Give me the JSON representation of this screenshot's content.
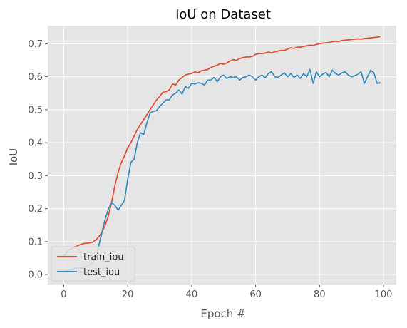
{
  "chart_data": {
    "type": "line",
    "title": "IoU on Dataset",
    "xlabel": "Epoch #",
    "ylabel": "IoU",
    "xlim": [
      -5,
      104
    ],
    "ylim": [
      -0.03,
      0.755
    ],
    "xticks": [
      0,
      20,
      40,
      60,
      80,
      100
    ],
    "yticks": [
      0.0,
      0.1,
      0.2,
      0.3,
      0.4,
      0.5,
      0.6,
      0.7
    ],
    "grid": true,
    "legend": "lower-left",
    "background": "#e5e5e5",
    "grid_color": "#ffffff",
    "x": [
      0,
      1,
      2,
      3,
      4,
      5,
      6,
      7,
      8,
      9,
      10,
      11,
      12,
      13,
      14,
      15,
      16,
      17,
      18,
      19,
      20,
      21,
      22,
      23,
      24,
      25,
      26,
      27,
      28,
      29,
      30,
      31,
      32,
      33,
      34,
      35,
      36,
      37,
      38,
      39,
      40,
      41,
      42,
      43,
      44,
      45,
      46,
      47,
      48,
      49,
      50,
      51,
      52,
      53,
      54,
      55,
      56,
      57,
      58,
      59,
      60,
      61,
      62,
      63,
      64,
      65,
      66,
      67,
      68,
      69,
      70,
      71,
      72,
      73,
      74,
      75,
      76,
      77,
      78,
      79,
      80,
      81,
      82,
      83,
      84,
      85,
      86,
      87,
      88,
      89,
      90,
      91,
      92,
      93,
      94,
      95,
      96,
      97,
      98,
      99
    ],
    "series": [
      {
        "name": "train_iou",
        "color": "#e24a33",
        "values": [
          0.055,
          0.07,
          0.077,
          0.082,
          0.086,
          0.09,
          0.094,
          0.095,
          0.096,
          0.098,
          0.105,
          0.115,
          0.13,
          0.15,
          0.18,
          0.22,
          0.27,
          0.31,
          0.34,
          0.36,
          0.385,
          0.4,
          0.42,
          0.44,
          0.455,
          0.47,
          0.485,
          0.5,
          0.515,
          0.53,
          0.54,
          0.553,
          0.555,
          0.56,
          0.578,
          0.575,
          0.59,
          0.598,
          0.605,
          0.608,
          0.61,
          0.615,
          0.612,
          0.618,
          0.62,
          0.622,
          0.628,
          0.632,
          0.635,
          0.64,
          0.638,
          0.642,
          0.648,
          0.652,
          0.65,
          0.655,
          0.658,
          0.66,
          0.66,
          0.662,
          0.668,
          0.67,
          0.67,
          0.672,
          0.675,
          0.672,
          0.676,
          0.678,
          0.68,
          0.68,
          0.684,
          0.688,
          0.686,
          0.69,
          0.69,
          0.692,
          0.694,
          0.696,
          0.695,
          0.698,
          0.7,
          0.702,
          0.703,
          0.704,
          0.706,
          0.708,
          0.707,
          0.71,
          0.711,
          0.712,
          0.713,
          0.714,
          0.715,
          0.714,
          0.716,
          0.717,
          0.718,
          0.719,
          0.72,
          0.722
        ]
      },
      {
        "name": "test_iou",
        "color": "#348abd",
        "values": [
          0.01,
          0.012,
          0.015,
          0.018,
          0.02,
          0.02,
          0.02,
          0.025,
          0.03,
          0.035,
          0.05,
          0.09,
          0.13,
          0.17,
          0.2,
          0.218,
          0.21,
          0.195,
          0.21,
          0.225,
          0.29,
          0.34,
          0.35,
          0.4,
          0.43,
          0.425,
          0.46,
          0.49,
          0.495,
          0.497,
          0.51,
          0.52,
          0.53,
          0.53,
          0.545,
          0.55,
          0.56,
          0.548,
          0.57,
          0.565,
          0.58,
          0.578,
          0.582,
          0.58,
          0.575,
          0.59,
          0.59,
          0.598,
          0.585,
          0.6,
          0.605,
          0.595,
          0.6,
          0.598,
          0.6,
          0.59,
          0.598,
          0.6,
          0.605,
          0.6,
          0.59,
          0.6,
          0.605,
          0.597,
          0.61,
          0.615,
          0.6,
          0.598,
          0.605,
          0.612,
          0.6,
          0.61,
          0.598,
          0.605,
          0.595,
          0.61,
          0.6,
          0.622,
          0.58,
          0.615,
          0.6,
          0.608,
          0.613,
          0.6,
          0.62,
          0.61,
          0.605,
          0.612,
          0.615,
          0.605,
          0.6,
          0.603,
          0.608,
          0.615,
          0.58,
          0.6,
          0.62,
          0.612,
          0.58,
          0.582
        ]
      }
    ]
  }
}
